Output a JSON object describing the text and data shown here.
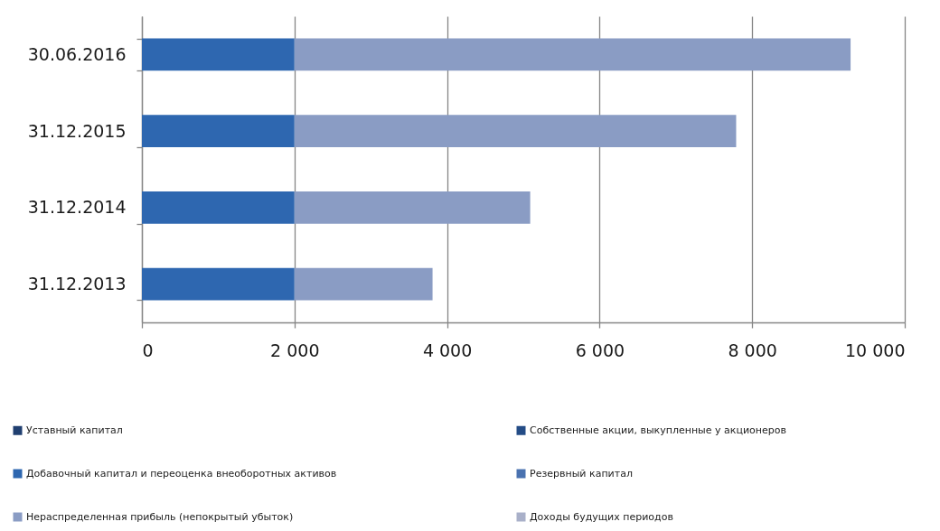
{
  "chart_data": {
    "type": "bar",
    "orientation": "horizontal",
    "stacked": true,
    "categories": [
      "30.06.2016",
      "31.12.2015",
      "31.12.2014",
      "31.12.2013"
    ],
    "series": [
      {
        "name": "Уставный капитал",
        "color": "#203f70",
        "values": [
          null,
          null,
          null,
          null
        ]
      },
      {
        "name": "Собственные акции, выкупленные у акционеров",
        "color": "#244c86",
        "values": [
          null,
          null,
          null,
          null
        ]
      },
      {
        "name": "Добавочный капитал и переоценка внеоборотных активов",
        "color": "#2e67b0",
        "values": [
          2000,
          2000,
          2000,
          2000
        ]
      },
      {
        "name": "Резервный капитал",
        "color": "#4a72b0",
        "values": [
          null,
          null,
          null,
          null
        ]
      },
      {
        "name": "Нераспределенная прибыль (непокрытый убыток)",
        "color": "#8a9cc4",
        "values": [
          7290,
          5790,
          3090,
          1810
        ]
      },
      {
        "name": "Доходы будущих периодов",
        "color": "#a9b0c9",
        "values": [
          null,
          null,
          null,
          null
        ]
      }
    ],
    "xlim": [
      0,
      10000
    ],
    "xticks": [
      0,
      {
        "value": 2000,
        "label": "2 000"
      },
      {
        "value": 4000,
        "label": "4 000"
      },
      {
        "value": 6000,
        "label": "6 000"
      },
      {
        "value": 8000,
        "label": "8 000"
      },
      {
        "value": 10000,
        "label": "10 000"
      }
    ],
    "grid": "x",
    "legend": "bottom"
  }
}
